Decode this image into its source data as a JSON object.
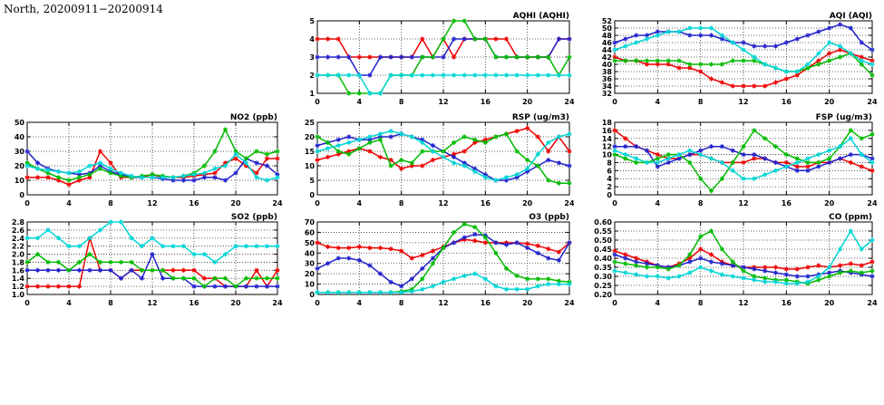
{
  "page_title": "North, 20200911−20200914",
  "colors": {
    "red": "#ee0000",
    "blue": "#2222cc",
    "green": "#00bb00",
    "cyan": "#00d5d5",
    "grid": "#333333",
    "axis": "#000000"
  },
  "chart_data": [
    {
      "type": "line",
      "id": "aqhi",
      "title": "AQHI (AQHI)",
      "xlim": [
        0,
        24
      ],
      "xticks": [
        0,
        4,
        8,
        12,
        16,
        20,
        24
      ],
      "x_start": 0,
      "x_step": 1,
      "ylim": [
        1,
        5
      ],
      "ystep": 1,
      "ydecimals": 0,
      "grid": true,
      "series": [
        {
          "name": "red",
          "color": "red",
          "values": [
            4,
            4,
            4,
            3,
            3,
            3,
            3,
            3,
            3,
            3,
            4,
            3,
            4,
            3,
            4,
            4,
            4,
            4,
            4,
            3,
            3,
            3,
            3,
            4,
            4
          ]
        },
        {
          "name": "blue",
          "color": "blue",
          "values": [
            3,
            3,
            3,
            3,
            2,
            2,
            3,
            3,
            3,
            3,
            3,
            3,
            3,
            4,
            4,
            4,
            4,
            3,
            3,
            3,
            3,
            3,
            3,
            4,
            4
          ]
        },
        {
          "name": "green",
          "color": "green",
          "values": [
            2,
            2,
            2,
            1,
            1,
            1,
            1,
            2,
            2,
            2,
            3,
            3,
            4,
            5,
            5,
            4,
            4,
            3,
            3,
            3,
            3,
            3,
            3,
            2,
            3
          ]
        },
        {
          "name": "cyan",
          "color": "cyan",
          "values": [
            2,
            2,
            2,
            2,
            2,
            1,
            1,
            2,
            2,
            2,
            2,
            2,
            2,
            2,
            2,
            2,
            2,
            2,
            2,
            2,
            2,
            2,
            2,
            2,
            2
          ]
        }
      ]
    },
    {
      "type": "line",
      "id": "aqi",
      "title": "AQI (AQI)",
      "xlim": [
        0,
        24
      ],
      "xticks": [
        0,
        4,
        8,
        12,
        16,
        20,
        24
      ],
      "x_start": 0,
      "x_step": 1,
      "ylim": [
        32,
        52
      ],
      "ystep": 2,
      "ydecimals": 0,
      "grid": true,
      "series": [
        {
          "name": "red",
          "color": "red",
          "values": [
            42,
            41,
            41,
            40,
            40,
            40,
            39,
            39,
            38,
            36,
            35,
            34,
            34,
            34,
            34,
            35,
            36,
            37,
            39,
            41,
            43,
            44,
            43,
            42,
            41
          ]
        },
        {
          "name": "blue",
          "color": "blue",
          "values": [
            46,
            47,
            48,
            48,
            49,
            49,
            49,
            48,
            48,
            48,
            47,
            46,
            46,
            45,
            45,
            45,
            46,
            47,
            48,
            49,
            50,
            51,
            50,
            46,
            44
          ]
        },
        {
          "name": "green",
          "color": "green",
          "values": [
            41,
            41,
            41,
            41,
            41,
            41,
            41,
            40,
            40,
            40,
            40,
            41,
            41,
            41,
            40,
            39,
            38,
            38,
            39,
            40,
            41,
            42,
            43,
            40,
            37
          ]
        },
        {
          "name": "cyan",
          "color": "cyan",
          "values": [
            44,
            45,
            46,
            47,
            48,
            49,
            49,
            50,
            50,
            50,
            48,
            46,
            44,
            42,
            40,
            39,
            38,
            38,
            40,
            43,
            46,
            45,
            43,
            41,
            40
          ]
        }
      ]
    },
    {
      "type": "line",
      "id": "no2",
      "title": "NO2 (ppb)",
      "xlim": [
        0,
        24
      ],
      "xticks": [
        0,
        4,
        8,
        12,
        16,
        20,
        24
      ],
      "x_start": 0,
      "x_step": 1,
      "ylim": [
        0,
        50
      ],
      "ystep": 10,
      "ydecimals": 0,
      "grid": true,
      "series": [
        {
          "name": "red",
          "color": "red",
          "values": [
            12,
            12,
            12,
            10,
            7,
            10,
            12,
            30,
            22,
            12,
            12,
            12,
            14,
            12,
            12,
            12,
            13,
            14,
            15,
            22,
            25,
            20,
            15,
            25,
            25
          ]
        },
        {
          "name": "blue",
          "color": "blue",
          "values": [
            30,
            22,
            18,
            16,
            15,
            14,
            15,
            20,
            16,
            14,
            12,
            12,
            12,
            11,
            10,
            10,
            10,
            12,
            12,
            10,
            15,
            25,
            22,
            20,
            14
          ]
        },
        {
          "name": "green",
          "color": "green",
          "values": [
            22,
            18,
            15,
            12,
            10,
            12,
            14,
            18,
            15,
            13,
            12,
            13,
            14,
            13,
            12,
            13,
            15,
            20,
            30,
            45,
            30,
            25,
            30,
            28,
            30
          ]
        },
        {
          "name": "cyan",
          "color": "cyan",
          "values": [
            20,
            18,
            17,
            16,
            15,
            16,
            20,
            22,
            18,
            15,
            13,
            12,
            12,
            12,
            12,
            13,
            14,
            15,
            18,
            20,
            28,
            22,
            12,
            10,
            12
          ]
        }
      ]
    },
    {
      "type": "line",
      "id": "rsp",
      "title": "RSP (ug/m3)",
      "xlim": [
        0,
        24
      ],
      "xticks": [
        0,
        4,
        8,
        12,
        16,
        20,
        24
      ],
      "x_start": 0,
      "x_step": 1,
      "ylim": [
        0,
        25
      ],
      "ystep": 5,
      "ydecimals": 0,
      "grid": true,
      "series": [
        {
          "name": "red",
          "color": "red",
          "values": [
            12,
            13,
            14,
            15,
            16,
            15,
            13,
            12,
            9,
            10,
            10,
            12,
            13,
            14,
            15,
            18,
            19,
            20,
            21,
            22,
            23,
            20,
            15,
            20,
            15
          ]
        },
        {
          "name": "blue",
          "color": "blue",
          "values": [
            17,
            18,
            19,
            20,
            19,
            19,
            20,
            20,
            21,
            20,
            19,
            17,
            15,
            13,
            11,
            9,
            7,
            5,
            5,
            6,
            8,
            10,
            12,
            11,
            10
          ]
        },
        {
          "name": "green",
          "color": "green",
          "values": [
            20,
            18,
            15,
            14,
            16,
            18,
            19,
            10,
            12,
            11,
            15,
            15,
            15,
            18,
            20,
            19,
            18,
            20,
            21,
            15,
            12,
            10,
            5,
            4,
            4
          ]
        },
        {
          "name": "cyan",
          "color": "cyan",
          "values": [
            15,
            16,
            17,
            18,
            19,
            20,
            21,
            22,
            21,
            20,
            18,
            15,
            13,
            11,
            10,
            8,
            6,
            5,
            6,
            7,
            9,
            14,
            18,
            20,
            21
          ]
        }
      ]
    },
    {
      "type": "line",
      "id": "fsp",
      "title": "FSP (ug/m3)",
      "xlim": [
        0,
        24
      ],
      "xticks": [
        0,
        4,
        8,
        12,
        16,
        20,
        24
      ],
      "x_start": 0,
      "x_step": 1,
      "ylim": [
        0,
        18
      ],
      "ystep": 2,
      "ydecimals": 0,
      "grid": true,
      "series": [
        {
          "name": "red",
          "color": "red",
          "values": [
            16,
            14,
            12,
            11,
            10,
            9,
            9,
            10,
            10,
            9,
            8,
            8,
            8,
            9,
            9,
            8,
            8,
            7,
            7,
            8,
            8,
            9,
            8,
            7,
            6
          ]
        },
        {
          "name": "blue",
          "color": "blue",
          "values": [
            12,
            12,
            12,
            11,
            7,
            8,
            9,
            10,
            11,
            12,
            12,
            11,
            10,
            10,
            9,
            8,
            7,
            6,
            6,
            7,
            8,
            9,
            10,
            10,
            9
          ]
        },
        {
          "name": "green",
          "color": "green",
          "values": [
            10,
            9,
            8,
            8,
            9,
            10,
            10,
            8,
            4,
            1,
            4,
            8,
            12,
            16,
            14,
            12,
            10,
            9,
            8,
            8,
            9,
            12,
            16,
            14,
            15
          ]
        },
        {
          "name": "cyan",
          "color": "cyan",
          "values": [
            11,
            10,
            9,
            8,
            8,
            9,
            10,
            11,
            10,
            9,
            8,
            6,
            4,
            4,
            5,
            6,
            7,
            8,
            9,
            10,
            11,
            12,
            14,
            10,
            8
          ]
        }
      ]
    },
    {
      "type": "line",
      "id": "so2",
      "title": "SO2 (ppb)",
      "xlim": [
        0,
        24
      ],
      "xticks": [
        0,
        4,
        8,
        12,
        16,
        20,
        24
      ],
      "x_start": 0,
      "x_step": 1,
      "ylim": [
        1.0,
        2.8
      ],
      "ystep": 0.2,
      "ydecimals": 1,
      "grid": true,
      "series": [
        {
          "name": "red",
          "color": "red",
          "values": [
            1.2,
            1.2,
            1.2,
            1.2,
            1.2,
            1.2,
            2.4,
            1.6,
            1.6,
            1.4,
            1.6,
            1.6,
            1.6,
            1.6,
            1.6,
            1.6,
            1.6,
            1.4,
            1.4,
            1.2,
            1.2,
            1.2,
            1.6,
            1.2,
            1.6
          ]
        },
        {
          "name": "blue",
          "color": "blue",
          "values": [
            1.6,
            1.6,
            1.6,
            1.6,
            1.6,
            1.6,
            1.6,
            1.6,
            1.6,
            1.4,
            1.6,
            1.4,
            2.0,
            1.4,
            1.4,
            1.4,
            1.2,
            1.2,
            1.2,
            1.2,
            1.2,
            1.2,
            1.2,
            1.2,
            1.2
          ]
        },
        {
          "name": "green",
          "color": "green",
          "values": [
            1.8,
            2.0,
            1.8,
            1.8,
            1.6,
            1.8,
            2.0,
            1.8,
            1.8,
            1.8,
            1.8,
            1.6,
            1.6,
            1.6,
            1.4,
            1.4,
            1.4,
            1.2,
            1.4,
            1.4,
            1.2,
            1.4,
            1.4,
            1.4,
            1.4
          ]
        },
        {
          "name": "cyan",
          "color": "cyan",
          "values": [
            2.4,
            2.4,
            2.6,
            2.4,
            2.2,
            2.2,
            2.4,
            2.6,
            2.8,
            2.8,
            2.4,
            2.2,
            2.4,
            2.2,
            2.2,
            2.2,
            2.0,
            2.0,
            1.8,
            2.0,
            2.2,
            2.2,
            2.2,
            2.2,
            2.2
          ]
        }
      ]
    },
    {
      "type": "line",
      "id": "o3",
      "title": "O3 (ppb)",
      "xlim": [
        0,
        24
      ],
      "xticks": [
        0,
        4,
        8,
        12,
        16,
        20,
        24
      ],
      "x_start": 0,
      "x_step": 1,
      "ylim": [
        0,
        70
      ],
      "ystep": 10,
      "ydecimals": 0,
      "grid": true,
      "series": [
        {
          "name": "red",
          "color": "red",
          "values": [
            50,
            46,
            45,
            45,
            46,
            45,
            45,
            44,
            42,
            35,
            38,
            42,
            46,
            50,
            53,
            52,
            50,
            50,
            50,
            50,
            49,
            47,
            44,
            41,
            50
          ]
        },
        {
          "name": "blue",
          "color": "blue",
          "values": [
            25,
            30,
            35,
            35,
            33,
            28,
            20,
            12,
            8,
            15,
            25,
            35,
            45,
            50,
            55,
            58,
            57,
            50,
            48,
            50,
            45,
            40,
            35,
            33,
            50
          ]
        },
        {
          "name": "green",
          "color": "green",
          "values": [
            2,
            2,
            2,
            2,
            2,
            2,
            2,
            2,
            3,
            5,
            15,
            30,
            45,
            60,
            68,
            65,
            55,
            40,
            25,
            18,
            15,
            15,
            15,
            13,
            12
          ]
        },
        {
          "name": "cyan",
          "color": "cyan",
          "values": [
            2,
            2,
            2,
            2,
            2,
            2,
            2,
            2,
            2,
            3,
            5,
            8,
            12,
            15,
            18,
            20,
            15,
            8,
            5,
            5,
            5,
            8,
            10,
            10,
            10
          ]
        }
      ]
    },
    {
      "type": "line",
      "id": "co",
      "title": "CO (ppm)",
      "xlim": [
        0,
        24
      ],
      "xticks": [
        0,
        4,
        8,
        12,
        16,
        20,
        24
      ],
      "x_start": 0,
      "x_step": 1,
      "ylim": [
        0.2,
        0.6
      ],
      "ystep": 0.05,
      "ydecimals": 2,
      "grid": true,
      "series": [
        {
          "name": "red",
          "color": "red",
          "values": [
            0.44,
            0.42,
            0.4,
            0.38,
            0.36,
            0.35,
            0.37,
            0.4,
            0.45,
            0.42,
            0.38,
            0.36,
            0.35,
            0.35,
            0.35,
            0.35,
            0.34,
            0.34,
            0.35,
            0.36,
            0.35,
            0.36,
            0.37,
            0.36,
            0.38
          ]
        },
        {
          "name": "blue",
          "color": "blue",
          "values": [
            0.42,
            0.4,
            0.38,
            0.37,
            0.36,
            0.35,
            0.36,
            0.38,
            0.4,
            0.38,
            0.37,
            0.36,
            0.35,
            0.34,
            0.33,
            0.32,
            0.31,
            0.3,
            0.3,
            0.31,
            0.32,
            0.33,
            0.32,
            0.31,
            0.3
          ]
        },
        {
          "name": "green",
          "color": "green",
          "values": [
            0.38,
            0.37,
            0.36,
            0.35,
            0.35,
            0.34,
            0.36,
            0.42,
            0.52,
            0.55,
            0.45,
            0.38,
            0.33,
            0.3,
            0.29,
            0.28,
            0.28,
            0.27,
            0.26,
            0.28,
            0.3,
            0.32,
            0.33,
            0.32,
            0.33
          ]
        },
        {
          "name": "cyan",
          "color": "cyan",
          "values": [
            0.33,
            0.32,
            0.31,
            0.3,
            0.3,
            0.29,
            0.3,
            0.32,
            0.35,
            0.33,
            0.31,
            0.3,
            0.29,
            0.28,
            0.27,
            0.27,
            0.26,
            0.26,
            0.27,
            0.3,
            0.35,
            0.45,
            0.55,
            0.45,
            0.5
          ]
        }
      ]
    }
  ]
}
